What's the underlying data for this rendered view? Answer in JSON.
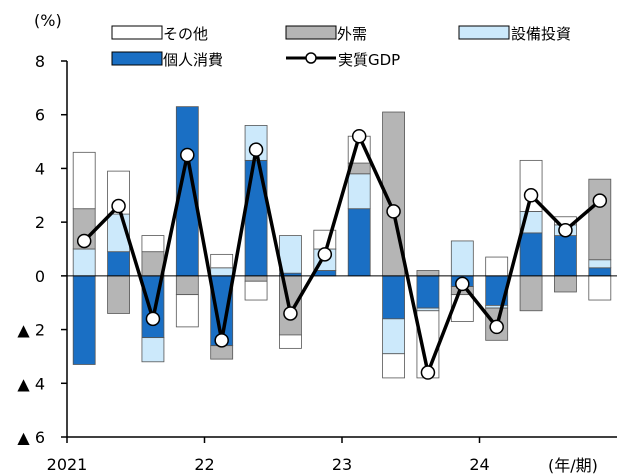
{
  "chart_data": {
    "type": "bar",
    "ylabel": "(%)",
    "xlabel": "(年/期)",
    "ylim": [
      -6,
      8
    ],
    "y_ticks": [
      -6,
      -4,
      -2,
      0,
      2,
      4,
      6,
      8
    ],
    "y_tick_labels": [
      "▲ 6",
      "▲ 4",
      "▲ 2",
      "0",
      "2",
      "4",
      "6",
      "8"
    ],
    "x_year_labels": [
      {
        "label": "2021",
        "at_index": 0
      },
      {
        "label": "22",
        "at_index": 4
      },
      {
        "label": "23",
        "at_index": 8
      },
      {
        "label": "24",
        "at_index": 12
      }
    ],
    "categories": [
      "2021Q1",
      "2021Q2",
      "2021Q3",
      "2021Q4",
      "2022Q1",
      "2022Q2",
      "2022Q3",
      "2022Q4",
      "2023Q1",
      "2023Q2",
      "2023Q3",
      "2023Q4",
      "2024Q1",
      "2024Q2",
      "2024Q3",
      "2024Q4"
    ],
    "stack_order": [
      "consumption",
      "capex",
      "external",
      "other"
    ],
    "legend": [
      {
        "key": "other",
        "name": "その他",
        "kind": "box"
      },
      {
        "key": "external",
        "name": "外需",
        "kind": "box"
      },
      {
        "key": "capex",
        "name": "設備投資",
        "kind": "box"
      },
      {
        "key": "consumption",
        "name": "個人消費",
        "kind": "box"
      },
      {
        "key": "gdp",
        "name": "実質GDP",
        "kind": "line"
      }
    ],
    "series": {
      "consumption": {
        "name": "個人消費",
        "color": "#1a6fc4",
        "values": [
          -3.3,
          0.9,
          -2.3,
          6.3,
          -2.6,
          4.3,
          0.1,
          0.2,
          2.5,
          -1.6,
          -1.2,
          -0.4,
          -1.1,
          1.6,
          1.5,
          0.3
        ]
      },
      "capex": {
        "name": "設備投資",
        "color": "#cce9fb",
        "values": [
          1.0,
          1.4,
          -0.9,
          0.0,
          0.3,
          1.3,
          1.4,
          0.8,
          1.3,
          -1.3,
          -0.1,
          1.3,
          -0.1,
          0.8,
          0.4,
          0.3
        ]
      },
      "external": {
        "name": "外需",
        "color": "#b5b5b5",
        "values": [
          1.5,
          -1.4,
          0.9,
          -0.7,
          -0.5,
          -0.2,
          -2.2,
          0.0,
          0.4,
          6.1,
          0.2,
          -0.3,
          -1.2,
          -1.3,
          -0.6,
          3.0
        ]
      },
      "other": {
        "name": "その他",
        "color": "#ffffff",
        "values": [
          2.1,
          1.6,
          0.6,
          -1.2,
          0.5,
          -0.7,
          -0.5,
          0.7,
          1.0,
          -0.9,
          -2.5,
          -1.0,
          0.7,
          1.9,
          0.3,
          -0.9
        ]
      },
      "gdp": {
        "name": "実質GDP",
        "color": "#000000",
        "values": [
          1.3,
          2.6,
          -1.6,
          4.5,
          -2.4,
          4.7,
          -1.4,
          0.8,
          5.2,
          2.4,
          -3.6,
          -0.3,
          -1.9,
          3.0,
          1.7,
          2.8
        ]
      }
    }
  }
}
